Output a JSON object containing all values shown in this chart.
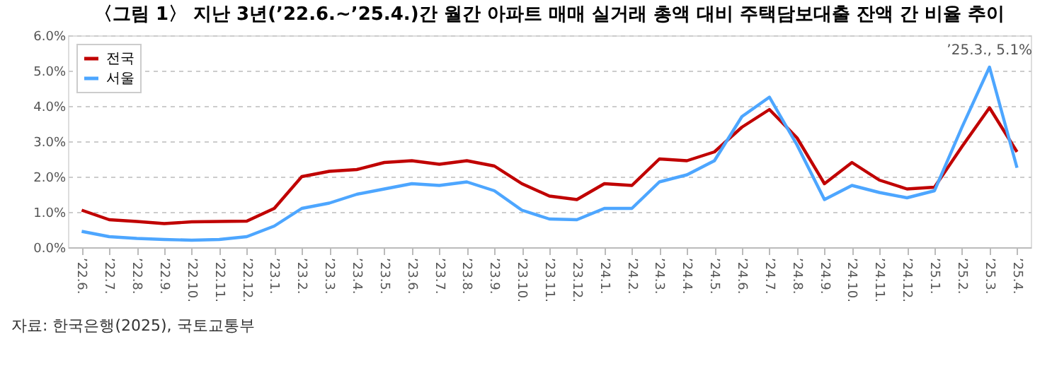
{
  "chart_data": {
    "type": "line",
    "title": "〈그림 1〉 지난 3년(’22.6.~’25.4.)간 월간 아파트 매매 실거래 총액 대비 주택담보대출 잔액 간 비율 추이",
    "categories": [
      "’22.6.",
      "’22.7.",
      "’22.8.",
      "’22.9.",
      "’22.10.",
      "’22.11.",
      "’22.12.",
      "’23.1.",
      "’23.2.",
      "’23.3.",
      "’23.4.",
      "’23.5.",
      "’23.6.",
      "’23.7.",
      "’23.8.",
      "’23.9.",
      "’23.10.",
      "’23.11.",
      "’23.12.",
      "’24.1.",
      "’24.2.",
      "’24.3.",
      "’24.4.",
      "’24.5.",
      "’24.6.",
      "’24.7.",
      "’24.8.",
      "’24.9.",
      "’24.10.",
      "’24.11.",
      "’24.12.",
      "’25.1.",
      "’25.2.",
      "’25.3.",
      "’25.4."
    ],
    "series": [
      {
        "name": "전국",
        "color": "#c00000",
        "values": [
          1.05,
          0.78,
          0.73,
          0.67,
          0.72,
          0.73,
          0.74,
          1.1,
          2.0,
          2.15,
          2.2,
          2.4,
          2.45,
          2.35,
          2.45,
          2.3,
          1.8,
          1.45,
          1.35,
          1.8,
          1.75,
          2.5,
          2.45,
          2.7,
          3.4,
          3.9,
          3.1,
          1.8,
          2.4,
          1.9,
          1.65,
          1.7,
          2.85,
          3.95,
          2.7
        ]
      },
      {
        "name": "서울",
        "color": "#4da6ff",
        "values": [
          0.45,
          0.3,
          0.25,
          0.22,
          0.2,
          0.22,
          0.3,
          0.6,
          1.1,
          1.25,
          1.5,
          1.65,
          1.8,
          1.75,
          1.85,
          1.6,
          1.05,
          0.8,
          0.78,
          1.1,
          1.1,
          1.85,
          2.05,
          2.45,
          3.7,
          4.25,
          2.9,
          1.35,
          1.75,
          1.55,
          1.4,
          1.6,
          3.4,
          5.1,
          2.25
        ]
      }
    ],
    "ylim": [
      0,
      6
    ],
    "yticks": [
      {
        "value": 0,
        "label": "0.0%"
      },
      {
        "value": 1,
        "label": "1.0%"
      },
      {
        "value": 2,
        "label": "2.0%"
      },
      {
        "value": 3,
        "label": "3.0%"
      },
      {
        "value": 4,
        "label": "4.0%"
      },
      {
        "value": 5,
        "label": "5.0%"
      },
      {
        "value": 6,
        "label": "6.0%"
      }
    ],
    "grid": "y",
    "legend": "top left",
    "marker": "none",
    "line_style": "solid",
    "annotations": [
      {
        "text": "’25.3., 5.1%",
        "x": "’25.3.",
        "y": 5.1
      },
      "자료: 한국은행(2025), 국토교통부"
    ]
  }
}
